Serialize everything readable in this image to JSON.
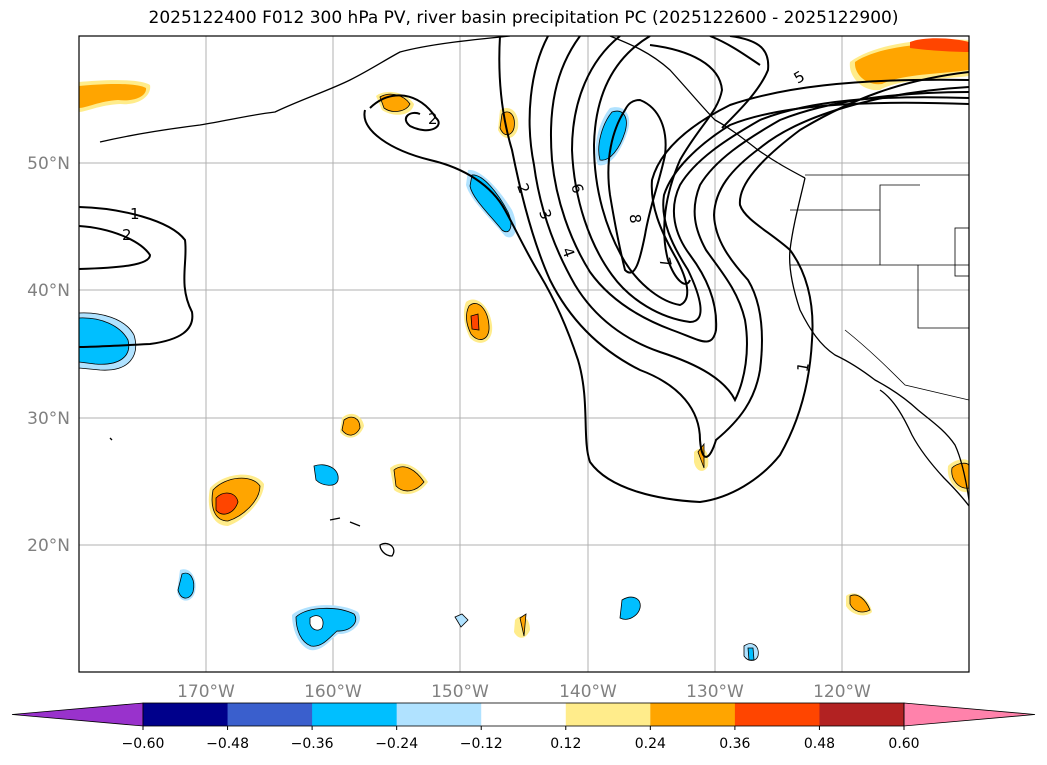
{
  "title": "2025122400 F012 300 hPa PV, river basin precipitation PC (2025122600 - 2025122900)",
  "map": {
    "lat_labels": [
      "50°N",
      "40°N",
      "30°N",
      "20°N"
    ],
    "lon_labels": [
      "170°W",
      "160°W",
      "150°W",
      "140°W",
      "130°W",
      "120°W"
    ],
    "extent": {
      "lon_min": -180,
      "lon_max": -110,
      "lat_min": 10,
      "lat_max": 60
    }
  },
  "pv_contour_labels": [
    "1",
    "2",
    "2",
    "2",
    "3",
    "4",
    "5",
    "6",
    "7",
    "8",
    "1"
  ],
  "colorbar": {
    "tick_labels": [
      "−0.60",
      "−0.48",
      "−0.36",
      "−0.24",
      "−0.12",
      "0.12",
      "0.24",
      "0.36",
      "0.48",
      "0.60"
    ],
    "colors": [
      "#9932cc",
      "#00008b",
      "#3a5fcd",
      "#00bfff",
      "#b0e2ff",
      "#ffffff",
      "#ffec8b",
      "#ffa500",
      "#ff4500",
      "#b22222",
      "#ff82ab"
    ]
  }
}
